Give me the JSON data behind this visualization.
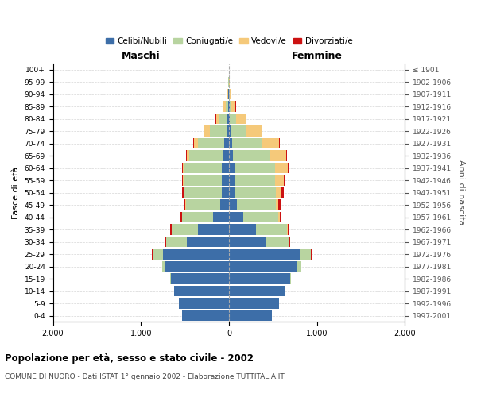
{
  "age_groups": [
    "0-4",
    "5-9",
    "10-14",
    "15-19",
    "20-24",
    "25-29",
    "30-34",
    "35-39",
    "40-44",
    "45-49",
    "50-54",
    "55-59",
    "60-64",
    "65-69",
    "70-74",
    "75-79",
    "80-84",
    "85-89",
    "90-94",
    "95-99",
    "100+"
  ],
  "birth_years": [
    "1997-2001",
    "1992-1996",
    "1987-1991",
    "1982-1986",
    "1977-1981",
    "1972-1976",
    "1967-1971",
    "1962-1966",
    "1957-1961",
    "1952-1956",
    "1947-1951",
    "1942-1946",
    "1937-1941",
    "1932-1936",
    "1927-1931",
    "1922-1926",
    "1917-1921",
    "1912-1916",
    "1907-1911",
    "1902-1906",
    "≤ 1901"
  ],
  "males": {
    "celibi": [
      530,
      570,
      620,
      660,
      730,
      750,
      480,
      350,
      180,
      100,
      85,
      80,
      80,
      70,
      55,
      30,
      15,
      10,
      5,
      2,
      0
    ],
    "coniugati": [
      0,
      1,
      2,
      5,
      25,
      120,
      230,
      300,
      350,
      390,
      420,
      430,
      430,
      380,
      300,
      190,
      90,
      30,
      8,
      3,
      0
    ],
    "vedovi": [
      0,
      0,
      0,
      0,
      0,
      1,
      1,
      2,
      2,
      3,
      5,
      10,
      15,
      30,
      45,
      55,
      40,
      20,
      8,
      2,
      0
    ],
    "divorziati": [
      0,
      0,
      1,
      2,
      3,
      5,
      15,
      20,
      25,
      20,
      20,
      15,
      8,
      5,
      5,
      5,
      5,
      5,
      2,
      1,
      0
    ]
  },
  "females": {
    "nubili": [
      490,
      570,
      630,
      700,
      780,
      800,
      420,
      310,
      160,
      90,
      75,
      65,
      60,
      50,
      40,
      20,
      10,
      6,
      4,
      2,
      0
    ],
    "coniugate": [
      0,
      1,
      2,
      5,
      30,
      130,
      260,
      350,
      400,
      440,
      460,
      460,
      460,
      410,
      330,
      180,
      70,
      20,
      5,
      2,
      0
    ],
    "vedove": [
      0,
      0,
      0,
      0,
      1,
      2,
      4,
      8,
      15,
      30,
      60,
      100,
      150,
      190,
      200,
      170,
      110,
      50,
      15,
      3,
      0
    ],
    "divorziate": [
      0,
      0,
      1,
      2,
      3,
      8,
      15,
      20,
      25,
      25,
      30,
      20,
      12,
      8,
      5,
      5,
      3,
      3,
      1,
      1,
      0
    ]
  },
  "colors": {
    "celibi": "#3d6ea8",
    "coniugati": "#b8d4a0",
    "vedovi": "#f5c97a",
    "divorziati": "#cc1111"
  },
  "legend_labels": [
    "Celibi/Nubili",
    "Coniugati/e",
    "Vedovi/e",
    "Divorziati/e"
  ],
  "title": "Popolazione per età, sesso e stato civile - 2002",
  "subtitle": "COMUNE DI NUORO - Dati ISTAT 1° gennaio 2002 - Elaborazione TUTTITALIA.IT",
  "ylabel_left": "Fasce di età",
  "ylabel_right": "Anni di nascita",
  "xlabel_left": "Maschi",
  "xlabel_right": "Femmine",
  "xlim": 2000,
  "xtick_labels": [
    "2.000",
    "1.000",
    "0",
    "1.000",
    "2.000"
  ],
  "xtick_values": [
    -2000,
    -1000,
    0,
    1000,
    2000
  ],
  "background_color": "#ffffff",
  "grid_color": "#cccccc"
}
